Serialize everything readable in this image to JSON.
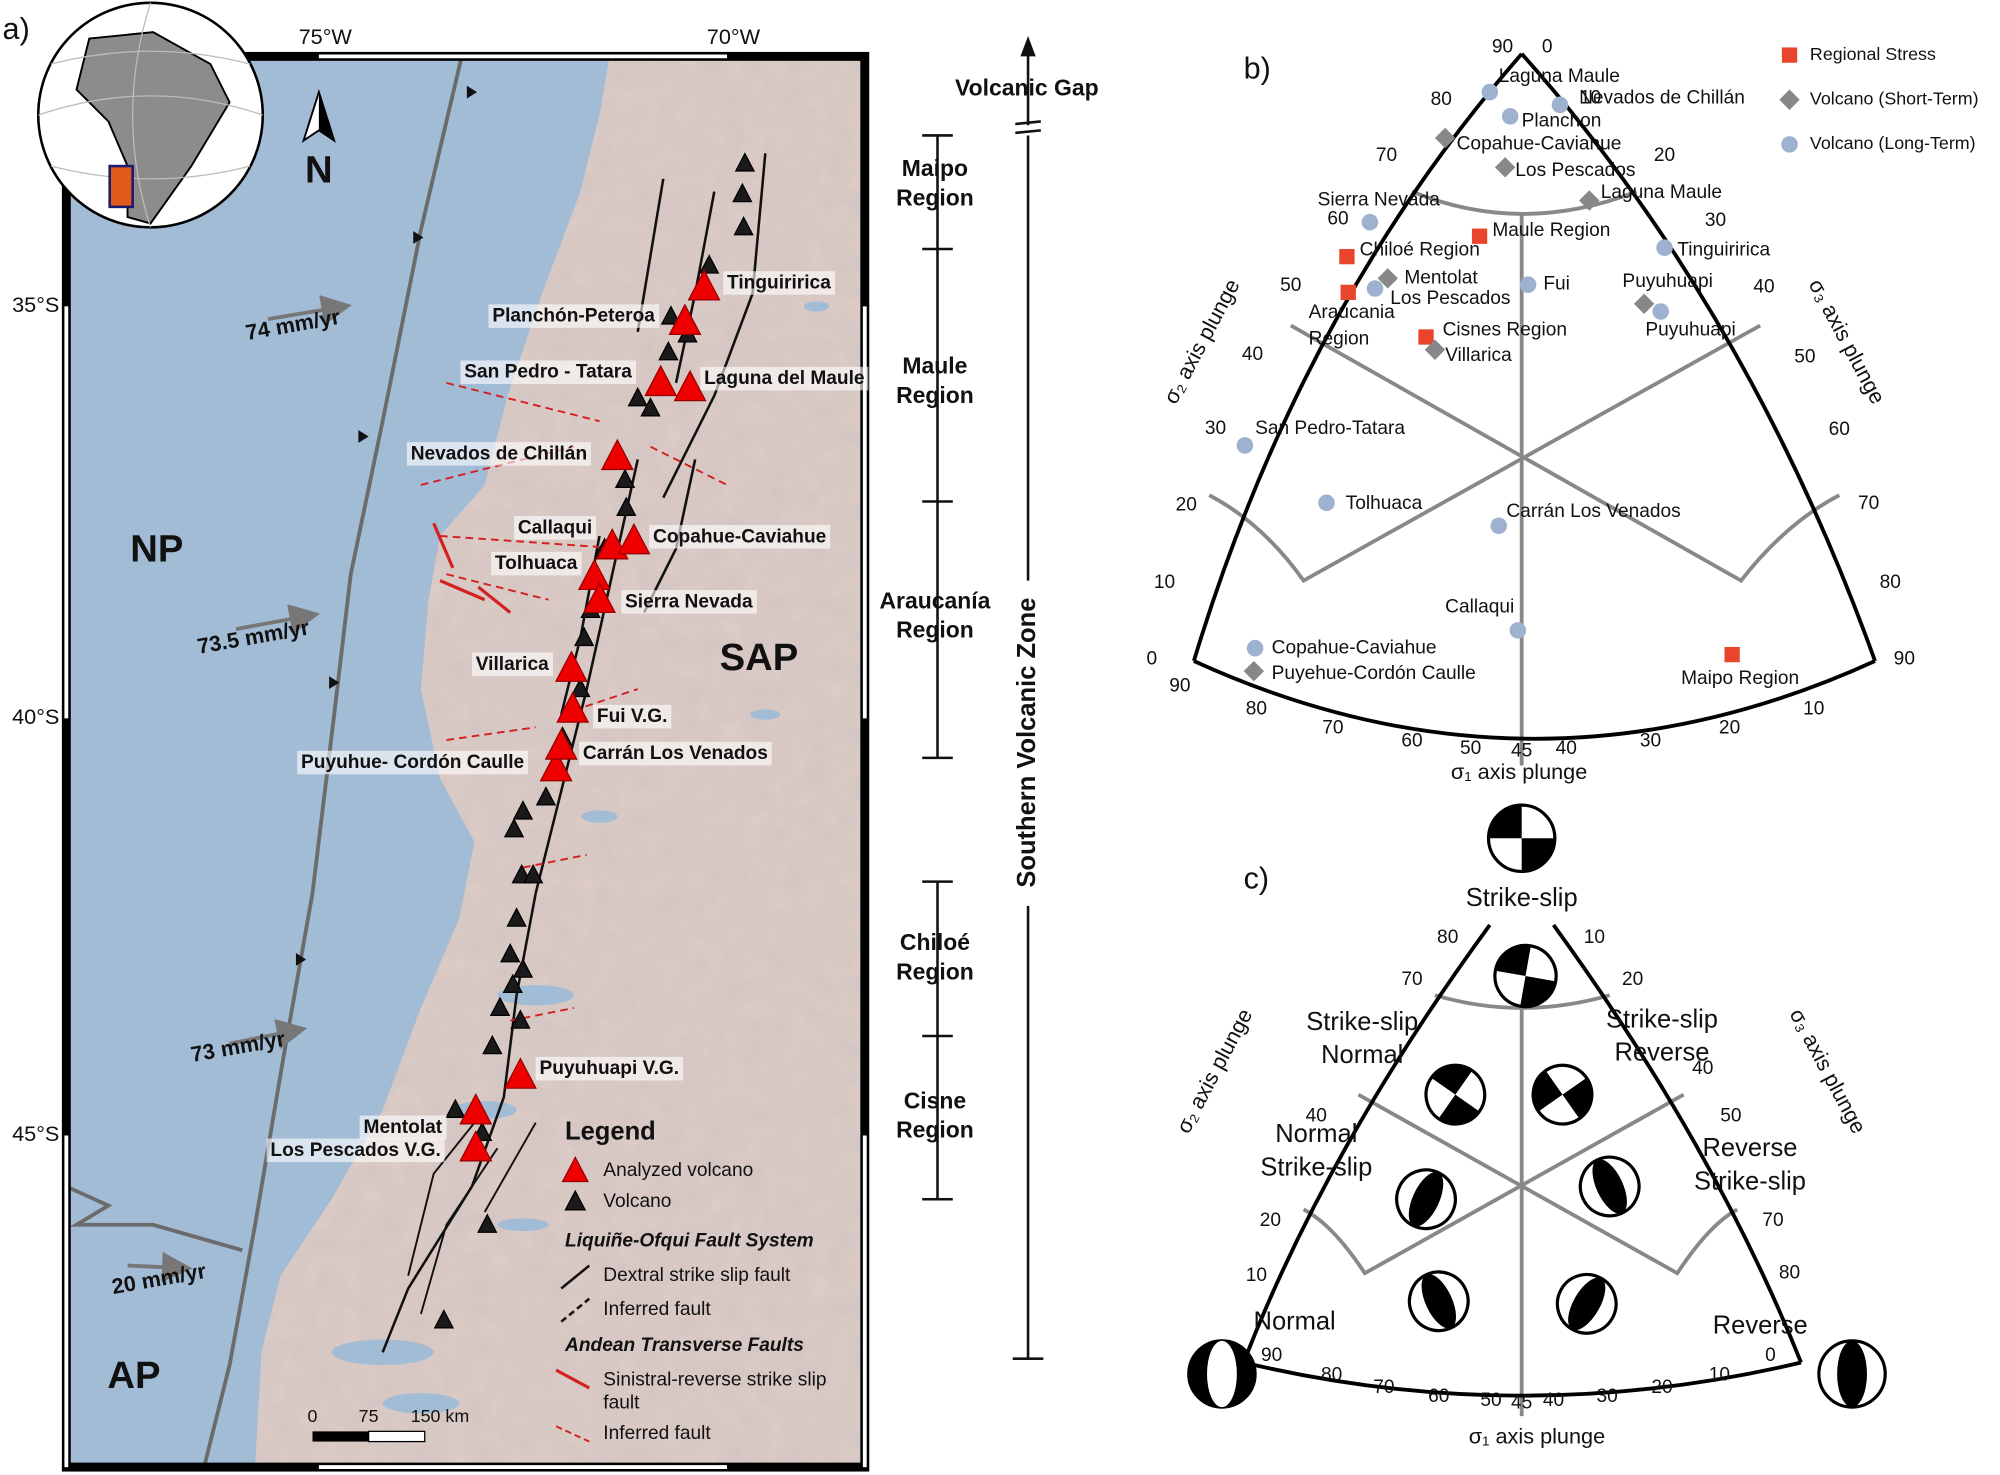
{
  "panel_a": {
    "label": "a)",
    "lon_labels": [
      "75°W",
      "70°W"
    ],
    "lat_labels": [
      "35°S",
      "40°S",
      "45°S"
    ],
    "north": "N",
    "plates": [
      "NP",
      "SAP",
      "AP"
    ],
    "rates": [
      "74 mm/yr",
      "73.5 mm/yr",
      "73 mm/yr",
      "20 mm/yr"
    ],
    "volcanoes": [
      "Tinguiririca",
      "Planchón-Peteroa",
      "San Pedro - Tatara",
      "Laguna del Maule",
      "Nevados de Chillán",
      "Callaqui",
      "Copahue-Caviahue",
      "Tolhuaca",
      "Sierra Nevada",
      "Villarica",
      "Fui V.G.",
      "Puyuhue- Cordón Caulle",
      "Carrán Los Venados",
      "Puyuhuapi V.G.",
      "Mentolat",
      "Los Pescados V.G."
    ],
    "legend": {
      "title": "Legend",
      "analyzed": "Analyzed volcano",
      "volcano": "Volcano",
      "lofs": "Liquiñe-Ofqui Fault System",
      "dextral": "Dextral strike slip fault",
      "inferred_lofs": "Inferred fault",
      "atf": "Andean Transverse Faults",
      "sinistral": [
        "Sinistral-reverse strike slip",
        "fault"
      ],
      "inferred_atf": "Inferred fault"
    },
    "scale": [
      "0",
      "75",
      "150 km"
    ]
  },
  "zones": {
    "gap": "Volcanic Gap",
    "regions": [
      [
        "Maipo",
        "Region"
      ],
      [
        "Maule",
        "Region"
      ],
      [
        "Araucanía",
        "Region"
      ],
      [
        "Chiloé",
        "Region"
      ],
      [
        "Cisne",
        "Region"
      ]
    ],
    "svz": "Southern Volcanic Zone"
  },
  "panel_b": {
    "label": "b)",
    "legend": [
      "Regional Stress",
      "Volcano (Short-Term)",
      "Volcano (Long-Term)"
    ],
    "left_ticks": [
      90,
      80,
      70,
      60,
      50,
      40,
      30,
      20,
      10,
      0
    ],
    "right_ticks": [
      0,
      10,
      20,
      30,
      40,
      50,
      60,
      70,
      80,
      90
    ],
    "bottom_ticks": [
      90,
      80,
      70,
      60,
      50,
      45,
      40,
      30,
      20,
      10
    ],
    "axis_titles": {
      "s2": "σ₂ axis plunge",
      "s3": "σ₃ axis plunge",
      "s1": "σ₁ axis plunge"
    },
    "regional": [
      "Maule Region",
      "Chiloé Region",
      [
        "Araucania",
        "Region"
      ],
      "Cisnes Region",
      "Maipo Region"
    ],
    "short_term": [
      "Copahue-Caviahue",
      "Los Pescados",
      "Laguna Maule",
      "Mentolat",
      "Puyuhuapi",
      "Villarica",
      "Puyehue-Cordón Caulle"
    ],
    "long_term": [
      "Laguna Maule",
      "Nevados de Chillán",
      "Planchon",
      "Sierra Nevada",
      "Tinguiririca",
      "Los Pescados",
      "Fui",
      "Puyuhuapi",
      "San Pedro-Tatara",
      "Tolhuaca",
      "Carrán Los Venados",
      "Callaqui",
      "Copahue-Caviahue"
    ]
  },
  "panel_c": {
    "label": "c)",
    "regimes": {
      "top": "Strike-slip",
      "ssn": [
        "Strike-slip",
        "Normal"
      ],
      "ssr": [
        "Strike-slip",
        "Reverse"
      ],
      "nss": [
        "Normal",
        "Strike-slip"
      ],
      "rss": [
        "Reverse",
        "Strike-slip"
      ],
      "normal": "Normal",
      "reverse": "Reverse"
    },
    "left_ticks": [
      80,
      70,
      40,
      20,
      10
    ],
    "right_ticks": [
      10,
      20,
      40,
      50,
      70,
      80
    ],
    "bottom_ticks": [
      90,
      80,
      70,
      60,
      50,
      45,
      40,
      30,
      20,
      10,
      0
    ],
    "axis_titles": {
      "s2": "σ₂ axis plunge",
      "s3": "σ₃ axis plunge",
      "s1": "σ₁ axis plunge"
    }
  }
}
